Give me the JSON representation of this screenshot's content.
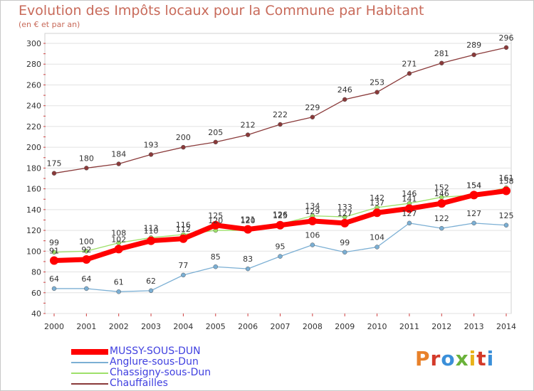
{
  "header": {
    "title": "Evolution des Impôts locaux pour la Commune par Habitant",
    "subtitle": "(en € et par an)"
  },
  "logo": {
    "text": "Proxiti",
    "colors": [
      "#e8812a",
      "#d33a2a",
      "#3a8fd9",
      "#6ab23a",
      "#e8b21a",
      "#d33a2a",
      "#3a8fd9"
    ]
  },
  "chart_data": {
    "type": "line",
    "x": [
      2000,
      2001,
      2002,
      2003,
      2004,
      2005,
      2006,
      2007,
      2008,
      2009,
      2010,
      2011,
      2012,
      2013,
      2014
    ],
    "ylim": [
      40,
      300
    ],
    "yticks": [
      40,
      60,
      80,
      100,
      120,
      140,
      160,
      180,
      200,
      220,
      240,
      260,
      280,
      300
    ],
    "grid": "horizontal",
    "legend_position": "bottom-left",
    "series": [
      {
        "name": "MUSSY-SOUS-DUN",
        "color": "#ff0000",
        "legend_color": "#4040e0",
        "values": [
          91,
          92,
          102,
          110,
          112,
          125,
          121,
          125,
          129,
          127,
          137,
          141,
          146,
          154,
          158
        ],
        "labels": [
          "91",
          "92",
          "102",
          "110",
          "112",
          "125",
          "121",
          "125",
          "129",
          "127",
          "137",
          "141",
          "146",
          "154",
          "158"
        ]
      },
      {
        "name": "Anglure-sous-Dun",
        "color": "#7bafd4",
        "legend_color": "#4040e0",
        "values": [
          64,
          64,
          61,
          62,
          77,
          85,
          83,
          95,
          106,
          99,
          104,
          127,
          122,
          127,
          125
        ],
        "labels": [
          "64",
          "64",
          "61",
          "62",
          "77",
          "85",
          "83",
          "95",
          "106",
          "99",
          "104",
          "127",
          "122",
          "127",
          "125"
        ]
      },
      {
        "name": "Chassigny-sous-Dun",
        "color": "#9ee06a",
        "legend_color": "#4040e0",
        "values": [
          99,
          100,
          108,
          113,
          116,
          120,
          120,
          126,
          134,
          133,
          142,
          146,
          152,
          154,
          161
        ],
        "labels": [
          "99",
          "100",
          "108",
          "113",
          "116",
          "120",
          "120",
          "126",
          "134",
          "133",
          "142",
          "146",
          "152",
          "154",
          "161"
        ]
      },
      {
        "name": "Chauffailles",
        "color": "#8a3a3a",
        "legend_color": "#4040e0",
        "values": [
          175,
          180,
          184,
          193,
          200,
          205,
          212,
          222,
          229,
          246,
          253,
          271,
          281,
          289,
          296
        ],
        "labels": [
          "175",
          "180",
          "184",
          "193",
          "200",
          "205",
          "212",
          "222",
          "229",
          "246",
          "253",
          "271",
          "281",
          "289",
          "296"
        ]
      }
    ]
  }
}
